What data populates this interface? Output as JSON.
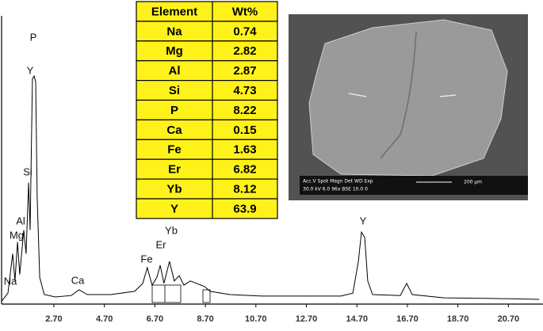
{
  "chart_data": {
    "type": "line",
    "x": [
      0.63,
      0.88,
      1.07,
      1.16,
      1.26,
      1.35,
      1.51,
      1.6,
      1.7,
      1.76,
      1.85,
      1.92,
      1.98,
      2.04,
      2.14,
      2.32,
      2.76,
      3.39,
      3.7,
      4.02,
      4.96,
      5.9,
      6.22,
      6.4,
      6.59,
      6.78,
      6.91,
      7.06,
      7.28,
      7.47,
      7.66,
      7.85,
      8.1,
      8.35,
      8.67,
      8.89,
      9.67,
      10.93,
      12.5,
      14.07,
      14.54,
      14.76,
      14.88,
      15.01,
      15.13,
      15.32,
      16.42,
      16.67,
      16.89,
      18.15,
      20.03,
      21.92
    ],
    "values": [
      1,
      3.7,
      17,
      7.8,
      21,
      10,
      25,
      17,
      41,
      25,
      76,
      77,
      75,
      36,
      9,
      3.2,
      2.4,
      2.9,
      4.8,
      3.2,
      3.2,
      4.3,
      7,
      12.3,
      6.4,
      9,
      13.1,
      7,
      14.4,
      7.8,
      9.6,
      6.4,
      7.8,
      7,
      5.9,
      4.3,
      3.2,
      2.7,
      2.7,
      2.7,
      3.7,
      14.4,
      24.3,
      22.5,
      7.8,
      3.2,
      2.9,
      7,
      3.2,
      2.1,
      1.9,
      1.6
    ],
    "color": "#000000",
    "xlim": [
      0.63,
      22.07
    ],
    "ylim": [
      0,
      100
    ],
    "xticks": [
      {
        "value": 2.7,
        "label": "2.70"
      },
      {
        "value": 4.7,
        "label": "4.70"
      },
      {
        "value": 6.7,
        "label": "6.70"
      },
      {
        "value": 8.7,
        "label": "8.70"
      },
      {
        "value": 10.7,
        "label": "10.70"
      },
      {
        "value": 12.7,
        "label": "12.70"
      },
      {
        "value": 14.7,
        "label": "14.70"
      },
      {
        "value": 16.7,
        "label": "16.70"
      },
      {
        "value": 18.7,
        "label": "18.70"
      },
      {
        "value": 20.7,
        "label": "20.70"
      }
    ],
    "peak_labels": [
      "Na",
      "Mg",
      "Al",
      "Si",
      "P",
      "Y",
      "Ca",
      "Fe",
      "Er",
      "Yb",
      "Y"
    ]
  },
  "table": {
    "header": [
      "Element",
      "Wt%"
    ],
    "rows": [
      [
        "Na",
        0.74
      ],
      [
        "Mg",
        2.82
      ],
      [
        "Al",
        2.87
      ],
      [
        "Si",
        4.73
      ],
      [
        "P",
        8.22
      ],
      [
        "Ca",
        0.15
      ],
      [
        "Fe",
        1.63
      ],
      [
        "Er",
        6.82
      ],
      [
        "Yb",
        8.12
      ],
      [
        "Y",
        63.9
      ]
    ]
  },
  "image": {
    "info_top": "Acc.V  Spot  Magn    Det  WD  Exp",
    "info_bottom": "30.0 kV  6.0   96x    BSE  10.0  0",
    "scale": "200 µm"
  }
}
